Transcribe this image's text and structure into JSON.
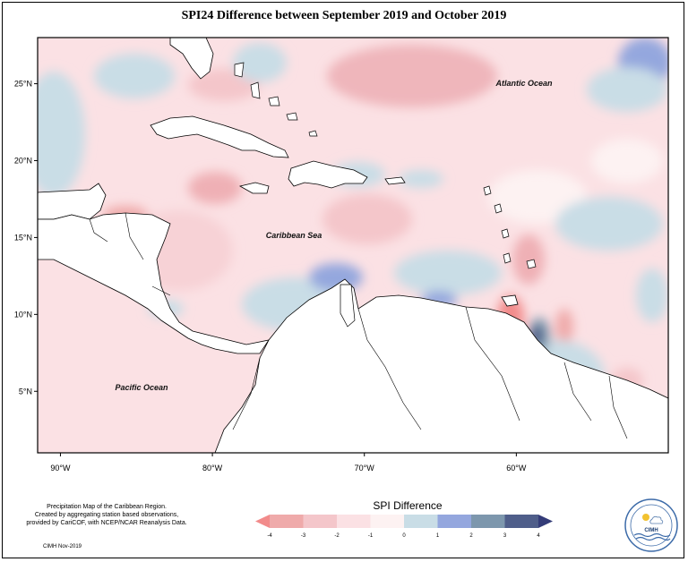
{
  "title": "SPI24 Difference between September 2019 and October 2019",
  "map": {
    "lat_ticks": [
      {
        "value": 25,
        "label": "25°N"
      },
      {
        "value": 20,
        "label": "20°N"
      },
      {
        "value": 15,
        "label": "15°N"
      },
      {
        "value": 10,
        "label": "10°N"
      },
      {
        "value": 5,
        "label": "5°N"
      }
    ],
    "lon_ticks": [
      {
        "value": -90,
        "label": "90°W"
      },
      {
        "value": -80,
        "label": "80°W"
      },
      {
        "value": -70,
        "label": "70°W"
      },
      {
        "value": -60,
        "label": "60°W"
      }
    ],
    "lon_range": [
      -91.5,
      -50
    ],
    "lat_range": [
      1,
      28
    ],
    "labels": {
      "atlantic": "Atlantic Ocean",
      "caribbean": "Caribbean Sea",
      "pacific": "Pacific Ocean"
    }
  },
  "legend": {
    "title": "SPI Difference",
    "ticks": [
      "-4",
      "-3",
      "-2",
      "-1",
      "0",
      "1",
      "2",
      "3",
      "4"
    ],
    "colors": [
      "#f28b8b",
      "#efaaaa",
      "#f4c6ca",
      "#fbe1e4",
      "#fdf2f2",
      "#c9dde6",
      "#94a7de",
      "#7d97ad",
      "#4f5e8a",
      "#343c78"
    ]
  },
  "credits": {
    "line1": "Precipitation Map of the Caribbean Region.",
    "line2": "Created by aggregating station based observations,",
    "line3": "provided by CariCOF, with NCEP/NCAR Reanalysis Data.",
    "footer": "CIMH Nov-2019"
  },
  "logo": {
    "text": "CIMH"
  }
}
